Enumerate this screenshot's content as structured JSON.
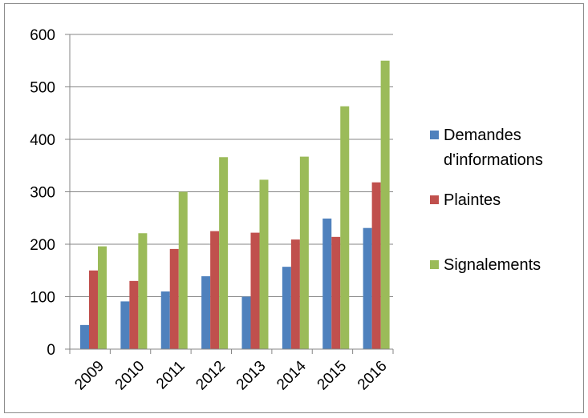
{
  "chart_data": {
    "type": "bar",
    "categories": [
      "2009",
      "2010",
      "2011",
      "2012",
      "2013",
      "2014",
      "2015",
      "2016"
    ],
    "series": [
      {
        "name": "Demandes d'informations",
        "color": "#4F81BD",
        "values": [
          46,
          91,
          110,
          139,
          100,
          157,
          249,
          231
        ]
      },
      {
        "name": "Plaintes",
        "color": "#C0504D",
        "values": [
          150,
          130,
          191,
          225,
          222,
          209,
          214,
          318
        ]
      },
      {
        "name": "Signalements",
        "color": "#9BBB59",
        "values": [
          196,
          221,
          300,
          366,
          323,
          367,
          463,
          550
        ]
      }
    ],
    "yticks": [
      0,
      100,
      200,
      300,
      400,
      500,
      600
    ],
    "ylim": [
      0,
      600
    ],
    "grid": true,
    "legend_position": "right",
    "legend_lines": [
      [
        "Demandes",
        "d'informations"
      ],
      [
        "Plaintes"
      ],
      [
        "Signalements"
      ]
    ],
    "title": "",
    "xlabel": "",
    "ylabel": ""
  }
}
